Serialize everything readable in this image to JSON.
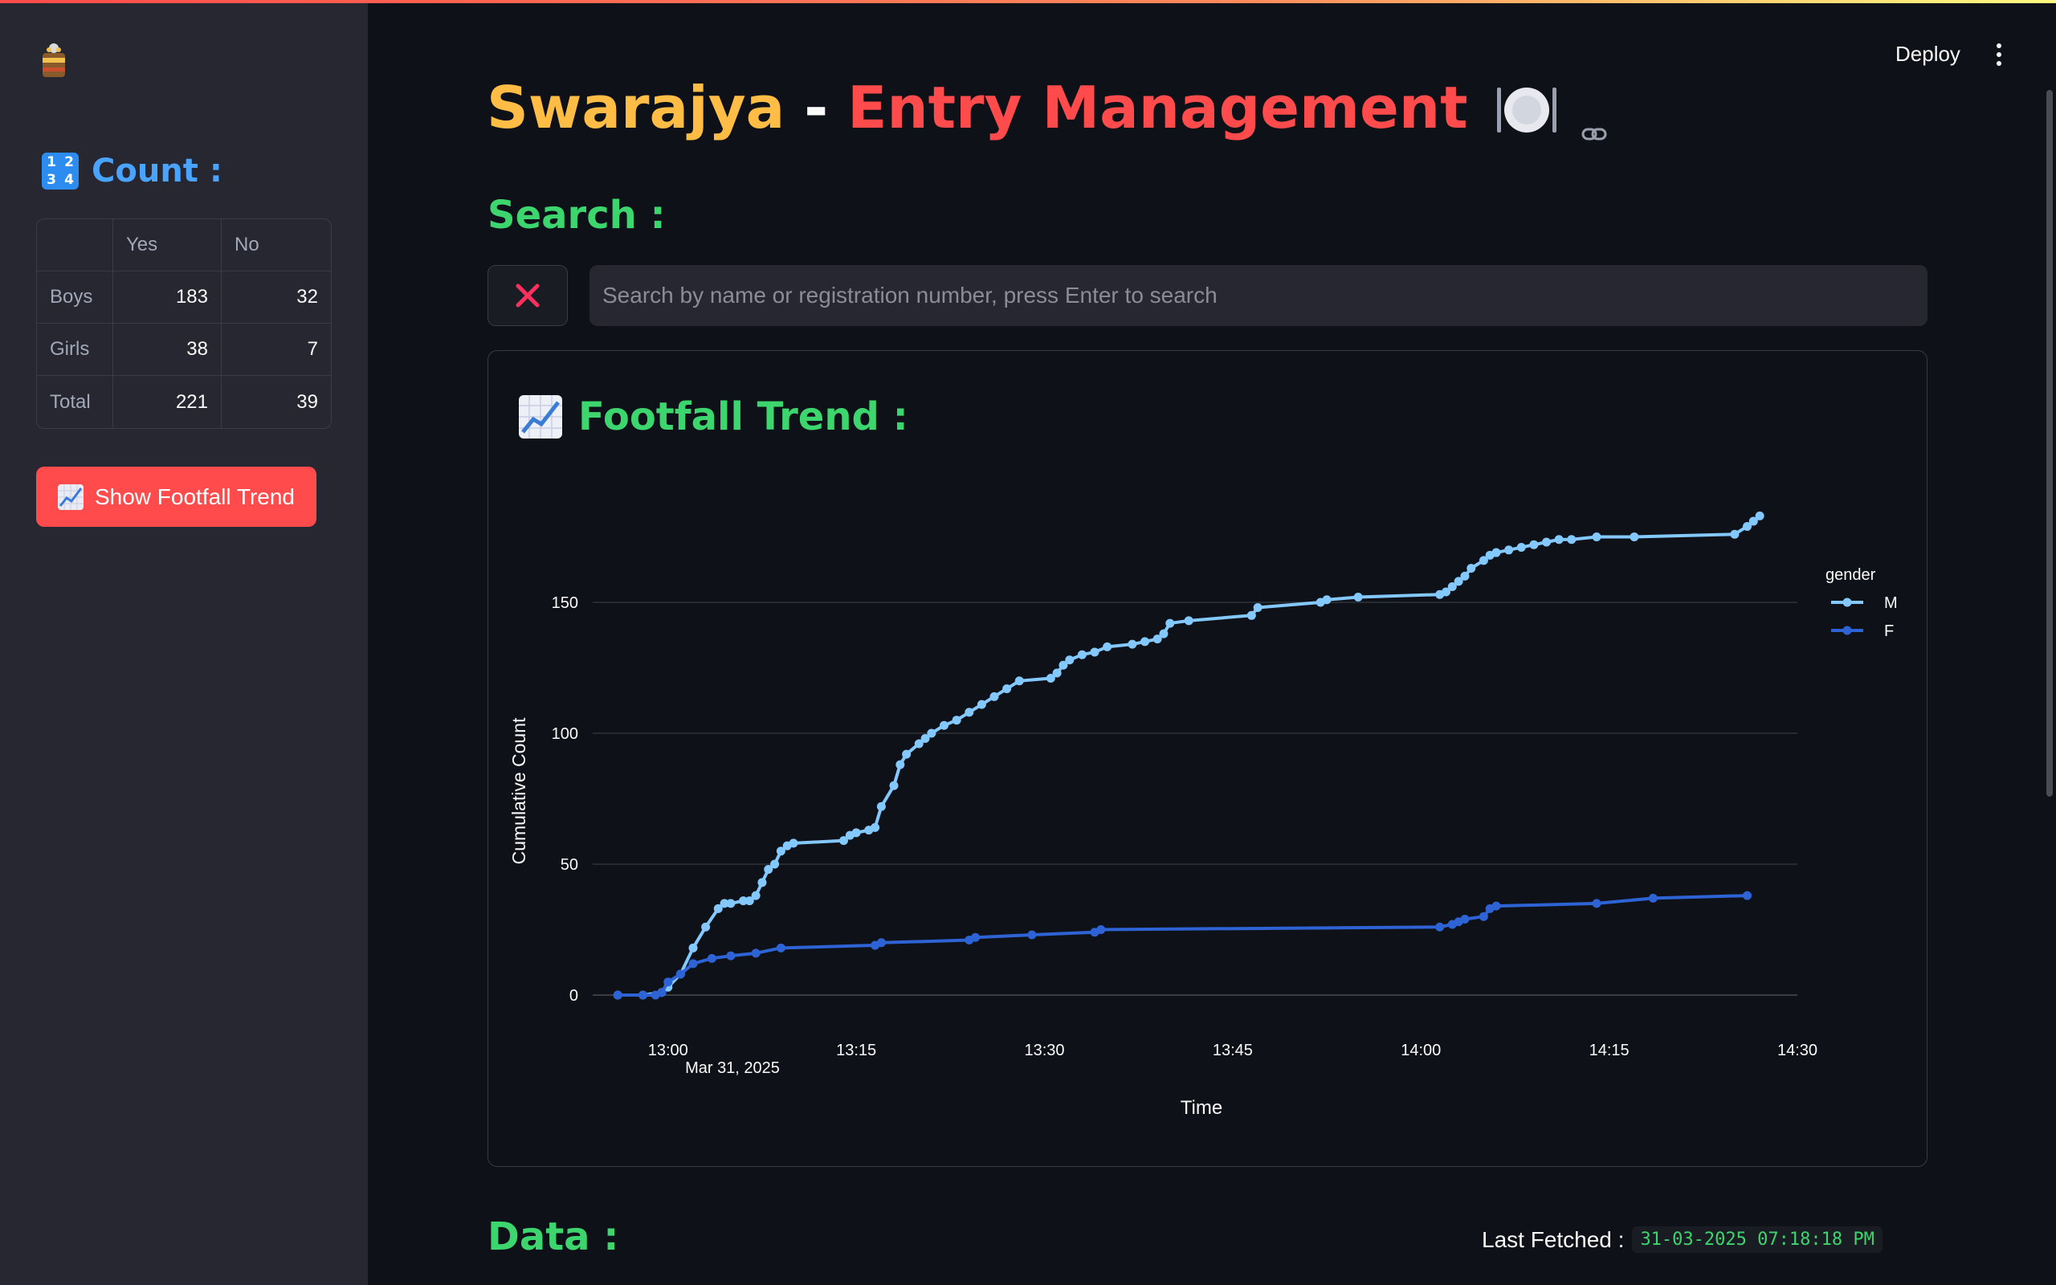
{
  "title": {
    "part1": "Swarajya",
    "separator": "-",
    "part2": "Entry Management"
  },
  "header": {
    "deploy_label": "Deploy"
  },
  "sidebar": {
    "count_heading": "Count :",
    "count_icon_digits": [
      "1",
      "2",
      "3",
      "4"
    ],
    "table": {
      "columns": [
        "",
        "Yes",
        "No"
      ],
      "rows": [
        {
          "label": "Boys",
          "yes": "183",
          "no": "32"
        },
        {
          "label": "Girls",
          "yes": "38",
          "no": "7"
        },
        {
          "label": "Total",
          "yes": "221",
          "no": "39"
        }
      ]
    },
    "trend_button_label": "Show Footfall Trend"
  },
  "search": {
    "heading": "Search :",
    "placeholder": "Search by name or registration number, press Enter to search"
  },
  "footfall": {
    "heading": "Footfall Trend :"
  },
  "data_section": {
    "heading": "Data :",
    "last_fetched_label": "Last Fetched :",
    "last_fetched_value": "31-03-2025 07:18:18 PM"
  },
  "colors": {
    "accent": "#ff4b4b",
    "title_orange": "#ffbd45",
    "heading_green": "#3dd56d",
    "count_blue": "#4aa3ff",
    "series_m": "#83c9ff",
    "series_f": "#2e63d6"
  },
  "chart_data": {
    "type": "line",
    "title": "",
    "xlabel": "Time",
    "ylabel": "Cumulative Count",
    "x_tick_labels": [
      "13:00",
      "13:15",
      "13:30",
      "13:45",
      "14:00",
      "14:15",
      "14:30"
    ],
    "x_date_label": "Mar 31, 2025",
    "x_range": [
      "12:54",
      "14:30"
    ],
    "y_ticks": [
      0,
      50,
      100,
      150
    ],
    "ylim": [
      0,
      200
    ],
    "grid": true,
    "legend_title": "gender",
    "legend_position": "top-right",
    "series": [
      {
        "name": "M",
        "x": [
          "12:56:00",
          "12:58:00",
          "12:59:30",
          "13:00:00",
          "13:01:00",
          "13:02:00",
          "13:03:00",
          "13:04:00",
          "13:04:30",
          "13:05:00",
          "13:06:00",
          "13:06:30",
          "13:07:00",
          "13:07:30",
          "13:08:00",
          "13:08:30",
          "13:09:00",
          "13:09:30",
          "13:10:00",
          "13:14:00",
          "13:14:30",
          "13:15:00",
          "13:16:00",
          "13:16:30",
          "13:17:00",
          "13:18:00",
          "13:18:30",
          "13:19:00",
          "13:20:00",
          "13:20:30",
          "13:21:00",
          "13:22:00",
          "13:23:00",
          "13:24:00",
          "13:25:00",
          "13:26:00",
          "13:27:00",
          "13:28:00",
          "13:30:30",
          "13:31:00",
          "13:31:30",
          "13:32:00",
          "13:33:00",
          "13:34:00",
          "13:35:00",
          "13:37:00",
          "13:38:00",
          "13:39:00",
          "13:39:30",
          "13:40:00",
          "13:41:30",
          "13:46:30",
          "13:47:00",
          "13:52:00",
          "13:52:30",
          "13:55:00",
          "14:01:30",
          "14:02:00",
          "14:02:30",
          "14:03:00",
          "14:03:30",
          "14:04:00",
          "14:05:00",
          "14:05:30",
          "14:06:00",
          "14:07:00",
          "14:08:00",
          "14:09:00",
          "14:10:00",
          "14:11:00",
          "14:12:00",
          "14:14:00",
          "14:17:00",
          "14:25:00",
          "14:26:00",
          "14:26:30",
          "14:27:00"
        ],
        "values": [
          0,
          0,
          1,
          3,
          8,
          18,
          26,
          33,
          35,
          35,
          36,
          36,
          38,
          43,
          48,
          50,
          55,
          57,
          58,
          59,
          61,
          62,
          63,
          64,
          72,
          80,
          88,
          92,
          96,
          98,
          100,
          103,
          105,
          108,
          111,
          114,
          117,
          120,
          121,
          123,
          126,
          128,
          130,
          131,
          133,
          134,
          135,
          136,
          138,
          142,
          143,
          145,
          148,
          150,
          151,
          152,
          153,
          154,
          156,
          158,
          160,
          163,
          166,
          168,
          169,
          170,
          171,
          172,
          173,
          174,
          174,
          175,
          175,
          176,
          179,
          181,
          183
        ]
      },
      {
        "name": "F",
        "x": [
          "12:56:00",
          "12:58:00",
          "12:59:00",
          "12:59:30",
          "13:00:00",
          "13:01:00",
          "13:02:00",
          "13:03:30",
          "13:05:00",
          "13:07:00",
          "13:09:00",
          "13:16:30",
          "13:17:00",
          "13:24:00",
          "13:24:30",
          "13:29:00",
          "13:34:00",
          "13:34:30",
          "14:01:30",
          "14:02:30",
          "14:03:00",
          "14:03:30",
          "14:05:00",
          "14:05:30",
          "14:06:00",
          "14:14:00",
          "14:18:30",
          "14:26:00"
        ],
        "values": [
          0,
          0,
          0,
          1,
          5,
          8,
          12,
          14,
          15,
          16,
          18,
          19,
          20,
          21,
          22,
          23,
          24,
          25,
          26,
          27,
          28,
          29,
          30,
          33,
          34,
          35,
          37,
          38
        ]
      }
    ]
  }
}
